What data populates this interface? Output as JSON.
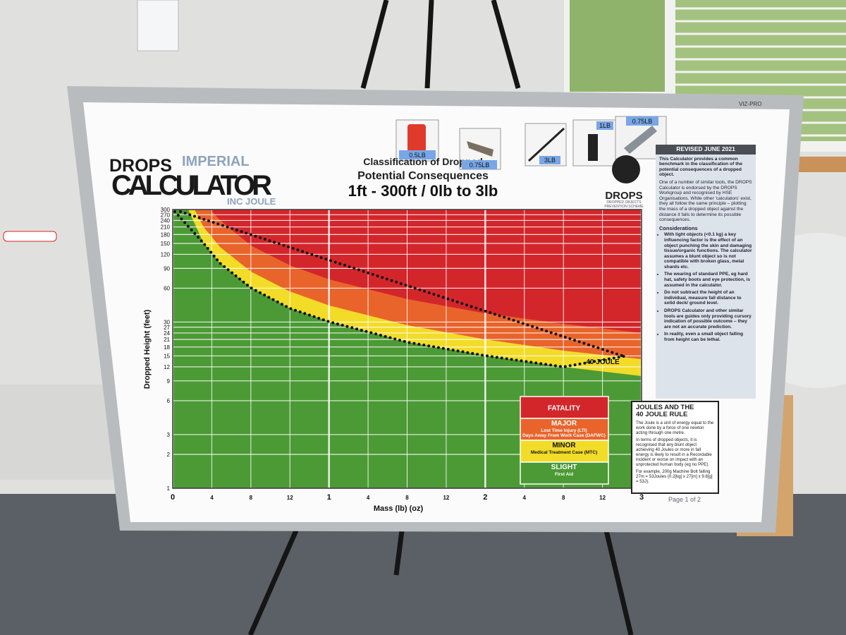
{
  "header": {
    "brand": "DROPS",
    "edition": "IMPERIAL",
    "product": "CALCULATOR",
    "suffix": "INC JOULE"
  },
  "title": {
    "line1": "Classification of Dropped",
    "line2": "Potential Consequences",
    "line3": "1ft - 300ft / 0lb to 3lb"
  },
  "stickers": [
    "0.5LB",
    "0.75LB",
    "3LB",
    "1LB",
    "0.75LB"
  ],
  "brand_tag": "VIZ-PRO",
  "logo": {
    "name": "DROPS",
    "tagline": "DROPPED OBJECTS PREVENTION SCHEME"
  },
  "chart_data": {
    "type": "area",
    "ylabel": "Dropped Height (feet)",
    "xlabel": "Mass (lb) (oz)",
    "log_y": true,
    "grid": true,
    "ylim": [
      1,
      300
    ],
    "yticks": [
      300,
      270,
      240,
      210,
      180,
      150,
      120,
      90,
      60,
      30,
      27,
      24,
      21,
      18,
      15,
      12,
      9,
      6,
      3,
      2,
      1
    ],
    "xlim": [
      0,
      3
    ],
    "xticks": [
      0,
      {
        "value": 0.25,
        "label": "4"
      },
      {
        "value": 0.5,
        "label": "8"
      },
      {
        "value": 0.75,
        "label": "12"
      },
      1,
      {
        "value": 1.25,
        "label": "4"
      },
      {
        "value": 1.5,
        "label": "8"
      },
      {
        "value": 1.75,
        "label": "12"
      },
      2,
      {
        "value": 2.25,
        "label": "4"
      },
      {
        "value": 2.5,
        "label": "8"
      },
      {
        "value": 2.75,
        "label": "12"
      },
      3
    ],
    "annotation": "40 JOULE",
    "legend": [
      {
        "name": "FATALITY",
        "color": "#d3262b",
        "detail": []
      },
      {
        "name": "MAJOR",
        "color": "#e9642b",
        "detail": [
          "Lost Time Injury (LTI)",
          "Days Away From Work Case (DAFWC)"
        ]
      },
      {
        "name": "MINOR",
        "color": "#f2dc28",
        "detail": [
          "Medical Treatment Case (MTC)"
        ]
      },
      {
        "name": "SLIGHT",
        "color": "#4c9a35",
        "detail": [
          "First Aid"
        ]
      }
    ]
  },
  "sidebar": {
    "revised": "REVISED JUNE 2021",
    "intro": [
      "This Calculator provides a common benchmark in the classification of the potential consequences of a dropped object.",
      "One of a number of similar tools, the DROPS Calculator is endorsed by the DROPS Workgroup and recognised by HSE Organisations. While other 'calculators' exist, they all follow the same principle – plotting the mass of a dropped object against the distance it falls to determine its possible consequences."
    ],
    "considerations_title": "Considerations",
    "considerations": [
      "With light objects (<0.1 kg) a key influencing factor is the effect of an object punching the skin and damaging tissue/organic functions. The calculator assumes a blunt object so is not compatible with broken glass, metal shards etc.",
      "The wearing of standard PPE, eg hard hat, safety boots and eye protection, is assumed in the calculator.",
      "Do not subtract the height of an individual, measure fall distance to solid deck/ ground level.",
      "DROPS Calculator and other similar tools are guides only providing cursory indication of possible outcome – they are not an accurate prediction.",
      "In reality, even a small object falling from height can be lethal."
    ]
  },
  "joule_rule": {
    "title": [
      "JOULES AND THE",
      "40 JOULE RULE"
    ],
    "paragraphs": [
      "The Joule is a unit of energy equal to the work done by a force of one newton acting through one metre.",
      "In terms of dropped objects, it is recognised that any blunt object achieving 40 Joules or more in fall energy is likely to result in a Recordable incident or worse on impact with an unprotected human body (eg no PPE).",
      "For example, 200g Machine Bolt falling 27m = 53Joules (0.2[kg] x 27[m] x 9.8[g] = 53J)."
    ]
  },
  "page": "Page 1 of 2"
}
